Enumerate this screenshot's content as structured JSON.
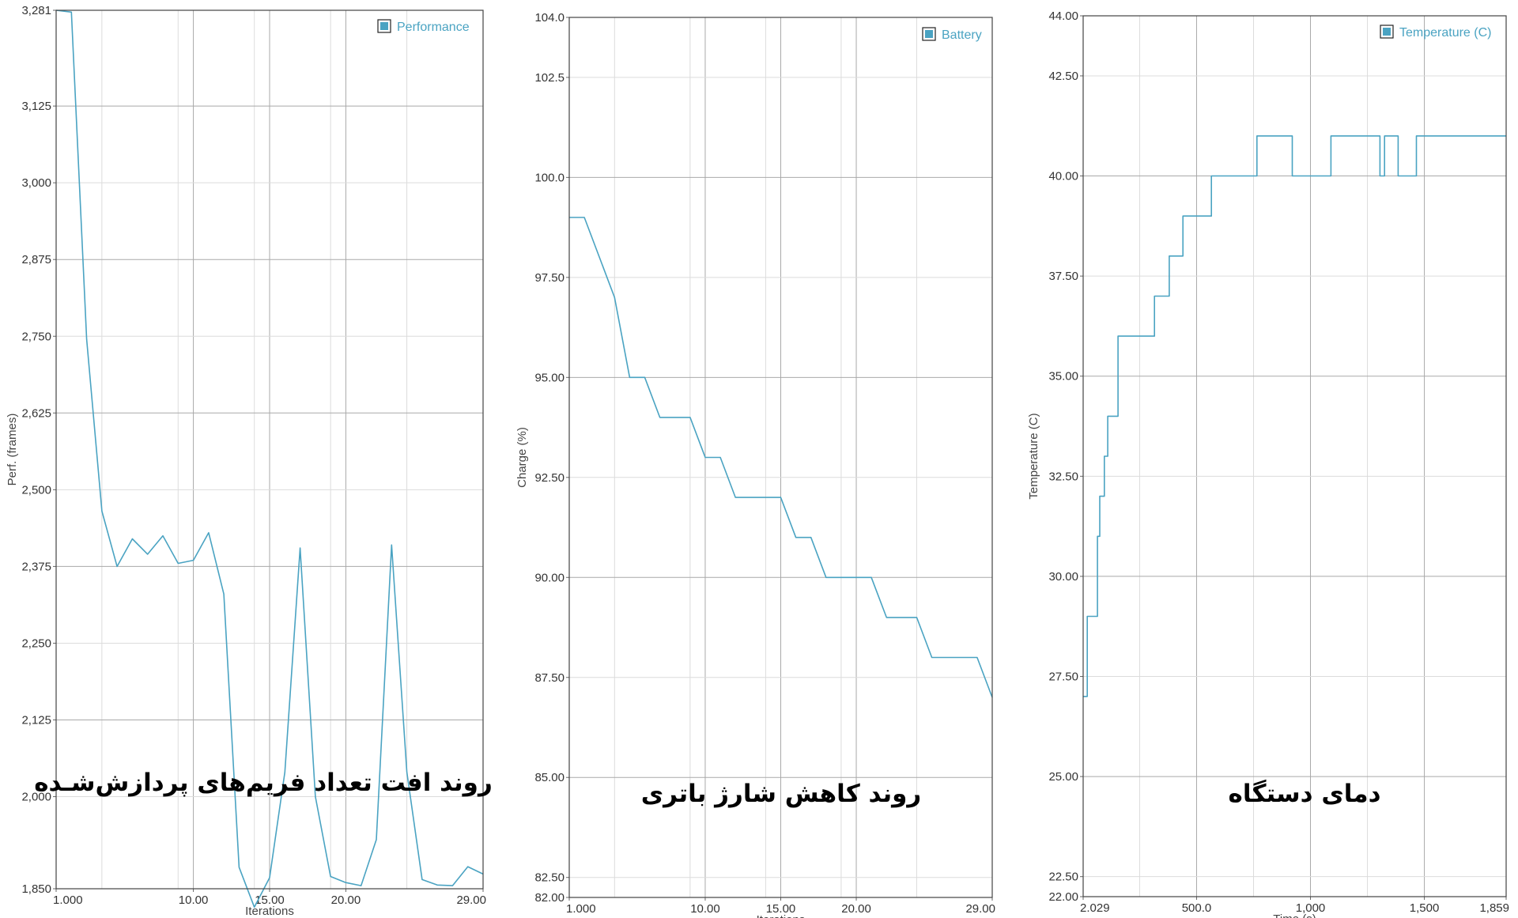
{
  "chart_data": [
    {
      "type": "line",
      "title": "",
      "overlay_caption": "روند افت تعداد فریم‌های پردازش‌شـده",
      "legend_position": "top-right",
      "grid": true,
      "xlabel": "Iterations",
      "ylabel": "Perf. (frames)",
      "xlim": [
        1,
        29
      ],
      "ylim": [
        1850,
        3281
      ],
      "x_ticks": [
        {
          "v": 1,
          "label": "1.000"
        },
        {
          "v": 10,
          "label": "10.00"
        },
        {
          "v": 15,
          "label": "15.00"
        },
        {
          "v": 20,
          "label": "20.00"
        },
        {
          "v": 29,
          "label": "29.00"
        }
      ],
      "x_grid": [
        4,
        9,
        14,
        19,
        24
      ],
      "y_ticks": [
        {
          "v": 1850,
          "label": "1,850"
        },
        {
          "v": 2000,
          "label": "2,000"
        },
        {
          "v": 2125,
          "label": "2,125"
        },
        {
          "v": 2250,
          "label": "2,250"
        },
        {
          "v": 2375,
          "label": "2,375"
        },
        {
          "v": 2500,
          "label": "2,500"
        },
        {
          "v": 2625,
          "label": "2,625"
        },
        {
          "v": 2750,
          "label": "2,750"
        },
        {
          "v": 2875,
          "label": "2,875"
        },
        {
          "v": 3000,
          "label": "3,000"
        },
        {
          "v": 3125,
          "label": "3,125"
        },
        {
          "v": 3281,
          "label": "3,281"
        }
      ],
      "series": [
        {
          "name": "Performance",
          "color": "#4aa3c2",
          "step": false,
          "x": [
            1,
            2,
            3,
            4,
            5,
            6,
            7,
            8,
            9,
            10,
            11,
            12,
            13,
            14,
            15,
            16,
            17,
            18,
            19,
            20,
            21,
            22,
            23,
            24,
            25,
            26,
            27,
            28,
            29
          ],
          "y": [
            3281,
            3278,
            2745,
            2465,
            2375,
            2420,
            2395,
            2425,
            2380,
            2385,
            2430,
            2330,
            1885,
            1820,
            1868,
            2040,
            2405,
            2000,
            1870,
            1860,
            1855,
            1930,
            2410,
            2040,
            1865,
            1856,
            1855,
            1886,
            1874
          ]
        }
      ]
    },
    {
      "type": "line",
      "title": "",
      "overlay_caption": "روند کاهش شارژ باتری",
      "legend_position": "top-right",
      "grid": true,
      "xlabel": "Iterations",
      "ylabel": "Charge (%)",
      "xlim": [
        1,
        29
      ],
      "ylim": [
        82,
        104
      ],
      "x_ticks": [
        {
          "v": 1,
          "label": "1.000"
        },
        {
          "v": 10,
          "label": "10.00"
        },
        {
          "v": 15,
          "label": "15.00"
        },
        {
          "v": 20,
          "label": "20.00"
        },
        {
          "v": 29,
          "label": "29.00"
        }
      ],
      "x_grid": [
        4,
        9,
        14,
        19,
        24
      ],
      "y_ticks": [
        {
          "v": 82,
          "label": "82.00"
        },
        {
          "v": 82.5,
          "label": "82.50"
        },
        {
          "v": 85,
          "label": "85.00"
        },
        {
          "v": 87.5,
          "label": "87.50"
        },
        {
          "v": 90,
          "label": "90.00"
        },
        {
          "v": 92.5,
          "label": "92.50"
        },
        {
          "v": 95,
          "label": "95.00"
        },
        {
          "v": 97.5,
          "label": "97.50"
        },
        {
          "v": 100,
          "label": "100.0"
        },
        {
          "v": 102.5,
          "label": "102.5"
        },
        {
          "v": 104,
          "label": "104.0"
        }
      ],
      "series": [
        {
          "name": "Battery",
          "color": "#4aa3c2",
          "step": false,
          "x": [
            1,
            2,
            3,
            4,
            5,
            6,
            7,
            8,
            9,
            10,
            11,
            12,
            13,
            14,
            15,
            16,
            17,
            18,
            19,
            20,
            21,
            22,
            23,
            24,
            25,
            26,
            27,
            28,
            29
          ],
          "y": [
            99,
            99,
            98,
            97,
            95,
            95,
            94,
            94,
            94,
            93,
            93,
            92,
            92,
            92,
            92,
            91,
            91,
            90,
            90,
            90,
            90,
            89,
            89,
            89,
            88,
            88,
            88,
            88,
            87
          ]
        }
      ]
    },
    {
      "type": "line",
      "title": "",
      "overlay_caption": "دمای دستگاه",
      "legend_position": "top-right",
      "grid": true,
      "xlabel": "Time (s)",
      "ylabel": "Temperature (C)",
      "xlim": [
        2.029,
        1859
      ],
      "ylim": [
        22,
        44
      ],
      "x_ticks": [
        {
          "v": 2.029,
          "label": "2.029"
        },
        {
          "v": 500,
          "label": "500.0"
        },
        {
          "v": 1000,
          "label": "1,000"
        },
        {
          "v": 1500,
          "label": "1,500"
        },
        {
          "v": 1859,
          "label": "1,859"
        }
      ],
      "x_grid": [
        250,
        750,
        1250
      ],
      "y_ticks": [
        {
          "v": 22,
          "label": "22.00"
        },
        {
          "v": 22.5,
          "label": "22.50"
        },
        {
          "v": 25,
          "label": "25.00"
        },
        {
          "v": 27.5,
          "label": "27.50"
        },
        {
          "v": 30,
          "label": "30.00"
        },
        {
          "v": 32.5,
          "label": "32.50"
        },
        {
          "v": 35,
          "label": "35.00"
        },
        {
          "v": 37.5,
          "label": "37.50"
        },
        {
          "v": 40,
          "label": "40.00"
        },
        {
          "v": 42.5,
          "label": "42.50"
        },
        {
          "v": 44,
          "label": "44.00"
        }
      ],
      "series": [
        {
          "name": "Temperature (C)",
          "color": "#4aa3c2",
          "step": true,
          "x": [
            2.029,
            20,
            65,
            75,
            95,
            110,
            155,
            315,
            380,
            440,
            565,
            765,
            920,
            1090,
            1305,
            1325,
            1385,
            1465,
            1859
          ],
          "y": [
            27,
            29,
            31,
            32,
            33,
            34,
            36,
            37,
            38,
            39,
            40,
            41,
            40,
            41,
            40,
            41,
            40,
            41,
            41
          ]
        }
      ]
    }
  ]
}
